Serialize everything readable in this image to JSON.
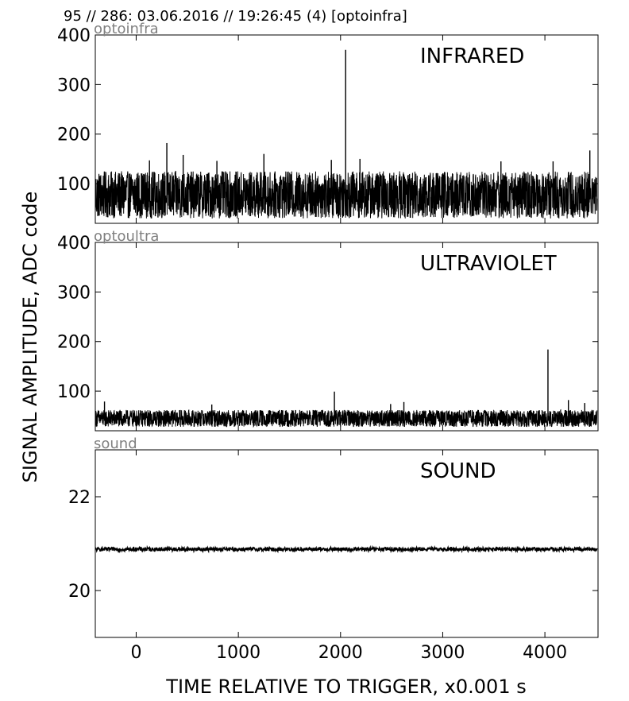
{
  "header": {
    "title": "95 // 286:   03.06.2016 // 19:26:45 (4)  [optoinfra]"
  },
  "figure": {
    "ylabel": "SIGNAL AMPLITUDE,  ADC code",
    "xlabel": "TIME RELATIVE TO TRIGGER,   x0.001 s"
  },
  "chart_data": [
    {
      "type": "line",
      "title": "INFRARED",
      "channel": "optoinfra",
      "x_range": [
        -400,
        4510
      ],
      "xlim": [
        -400,
        4520
      ],
      "ylim": [
        20,
        400
      ],
      "yticks": [
        100,
        200,
        300,
        400
      ],
      "xticks": [
        0,
        1000,
        2000,
        3000,
        4000
      ],
      "grid": false,
      "baseline": 70,
      "noise_range": [
        30,
        125
      ],
      "spikes": [
        {
          "x": 2050,
          "y": 370
        },
        {
          "x": 300,
          "y": 182
        },
        {
          "x": 4440,
          "y": 167
        },
        {
          "x": 1250,
          "y": 160
        },
        {
          "x": 460,
          "y": 158
        },
        {
          "x": 2190,
          "y": 150
        },
        {
          "x": 1910,
          "y": 148
        },
        {
          "x": 130,
          "y": 147
        },
        {
          "x": 790,
          "y": 146
        },
        {
          "x": 3570,
          "y": 145
        },
        {
          "x": 4080,
          "y": 145
        }
      ]
    },
    {
      "type": "line",
      "title": "ULTRAVIOLET",
      "channel": "optoultra",
      "x_range": [
        -400,
        4510
      ],
      "xlim": [
        -400,
        4520
      ],
      "ylim": [
        20,
        400
      ],
      "yticks": [
        100,
        200,
        300,
        400
      ],
      "xticks": [
        0,
        1000,
        2000,
        3000,
        4000
      ],
      "grid": false,
      "baseline": 40,
      "noise_range": [
        28,
        62
      ],
      "spikes": [
        {
          "x": 4030,
          "y": 184
        },
        {
          "x": 1940,
          "y": 99
        },
        {
          "x": 4230,
          "y": 82
        },
        {
          "x": 2620,
          "y": 78
        },
        {
          "x": 4390,
          "y": 76
        },
        {
          "x": 2490,
          "y": 74
        },
        {
          "x": -310,
          "y": 79
        },
        {
          "x": 740,
          "y": 73
        }
      ]
    },
    {
      "type": "line",
      "title": "SOUND",
      "channel": "sound",
      "x_range": [
        -400,
        4510
      ],
      "xlim": [
        -400,
        4520
      ],
      "ylim": [
        19,
        23
      ],
      "yticks": [
        20,
        22
      ],
      "xticks": [
        0,
        1000,
        2000,
        3000,
        4000
      ],
      "xticklabels": [
        "0",
        "1000",
        "2000",
        "3000",
        "4000"
      ],
      "grid": false,
      "baseline": 20.88,
      "noise_range": [
        20.84,
        20.92
      ]
    }
  ]
}
